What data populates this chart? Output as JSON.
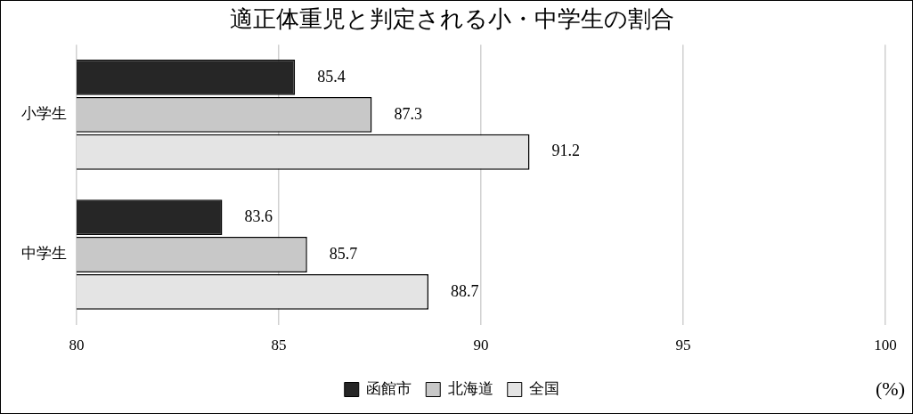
{
  "chart_data": {
    "type": "bar",
    "orientation": "horizontal",
    "title": "適正体重児と判定される小・中学生の割合",
    "xlabel": "(%)",
    "categories": [
      "小学生",
      "中学生"
    ],
    "series": [
      {
        "name": "函館市",
        "color": "#262626",
        "values": [
          85.4,
          83.6
        ]
      },
      {
        "name": "北海道",
        "color": "#c8c8c8",
        "values": [
          87.3,
          85.7
        ]
      },
      {
        "name": "全国",
        "color": "#e4e4e4",
        "values": [
          91.2,
          88.7
        ]
      }
    ],
    "xlim": [
      80,
      100
    ],
    "xticks": [
      80,
      85,
      90,
      95,
      100
    ],
    "grid": "x",
    "legend": "bottom",
    "data_labels": true
  }
}
